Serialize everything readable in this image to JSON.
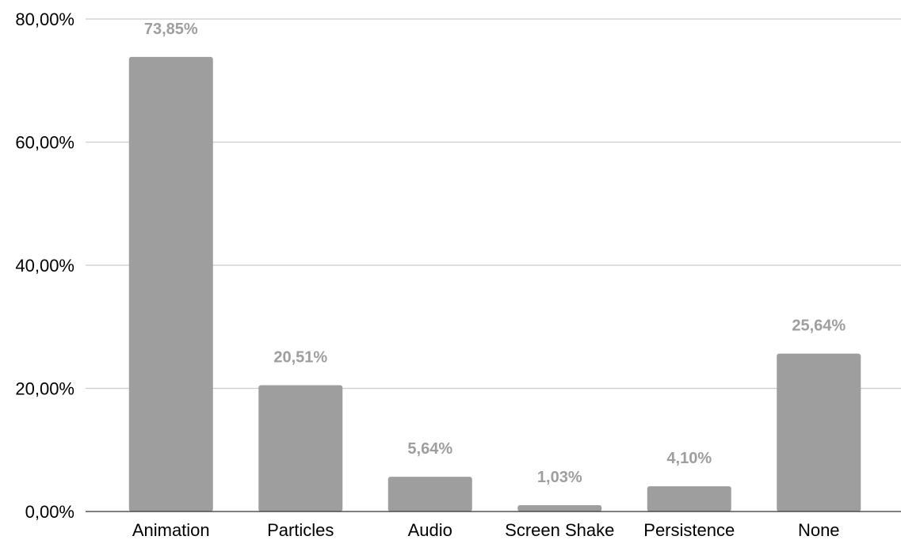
{
  "chart_data": {
    "type": "bar",
    "title": "",
    "xlabel": "",
    "ylabel": "",
    "categories": [
      "Animation",
      "Particles",
      "Audio",
      "Screen Shake",
      "Persistence",
      "None"
    ],
    "values": [
      73.85,
      20.51,
      5.64,
      1.03,
      4.1,
      25.64
    ],
    "data_labels": [
      "73,85%",
      "20,51%",
      "5,64%",
      "1,03%",
      "4,10%",
      "25,64%"
    ],
    "ylim": [
      0,
      80
    ],
    "yticks": [
      0,
      20,
      40,
      60,
      80
    ],
    "ytick_labels": [
      "0,00%",
      "20,00%",
      "40,00%",
      "60,00%",
      "80,00%"
    ],
    "grid": true,
    "legend": "none",
    "colors": {
      "bar": "#9e9e9e",
      "data_label": "#9e9e9e",
      "grid": "#cccccc",
      "axis": "#333333",
      "text": "#000000"
    }
  }
}
